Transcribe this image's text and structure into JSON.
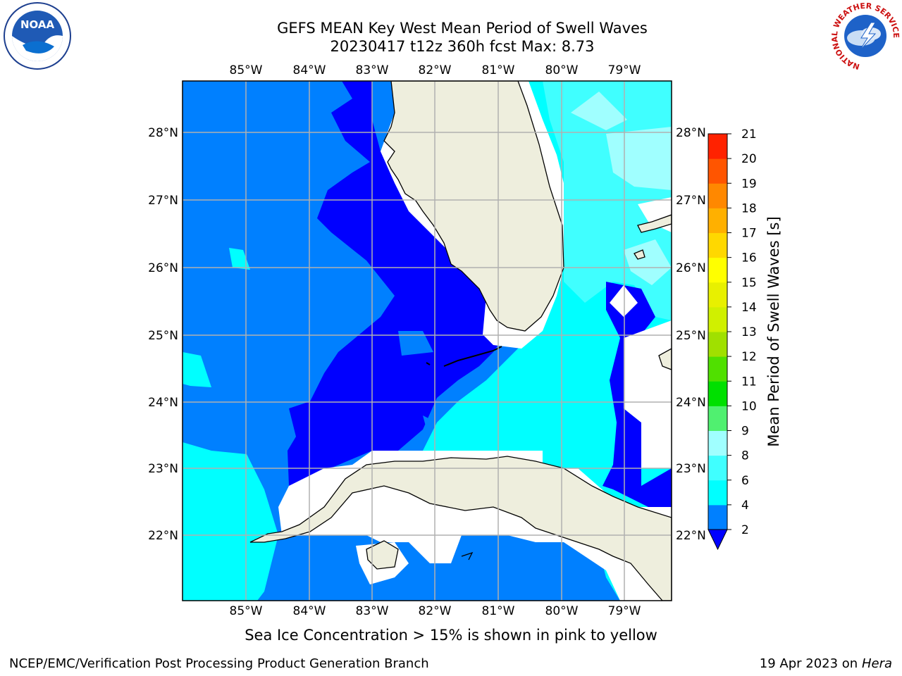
{
  "title": {
    "line1": "GEFS MEAN Key West Mean Period of Swell Waves",
    "line2": "20230417 t12z 360h fcst   Max: 8.73"
  },
  "map": {
    "lon_labels": [
      "85°W",
      "84°W",
      "83°W",
      "82°W",
      "81°W",
      "80°W",
      "79°W"
    ],
    "lat_labels_left": [
      "28°N",
      "27°N",
      "26°N",
      "25°N",
      "24°N",
      "23°N",
      "22°N"
    ],
    "lat_labels_right": [
      "28°N",
      "27°N",
      "26°N",
      "25°N",
      "24°N",
      "23°N",
      "22°N"
    ],
    "colors": {
      "band_2_4": "#0080ff",
      "band_below_2": "#0000ff",
      "band_4_6": "#00ffff",
      "band_6_8": "#40ffff",
      "band_8_9": "#a0ffff",
      "land": "#eeeedd",
      "grid": "#b0b0b0"
    }
  },
  "colorbar": {
    "label": "Mean Period of Swell Waves [s]",
    "ticks": [
      "2",
      "4",
      "6",
      "8",
      "9",
      "10",
      "11",
      "12",
      "13",
      "14",
      "15",
      "16",
      "17",
      "18",
      "19",
      "20",
      "21"
    ],
    "band_colors": [
      "#0080ff",
      "#00ffff",
      "#40ffff",
      "#a0ffff",
      "#50f070",
      "#00e000",
      "#50e000",
      "#a0e000",
      "#d0f000",
      "#e8f000",
      "#ffff00",
      "#ffd800",
      "#ffb000",
      "#ff8800",
      "#ff5500",
      "#ff2200"
    ],
    "extend_color": "#0000ff"
  },
  "caption": "Sea Ice Concentration > 15% is shown in pink to yellow",
  "footer": {
    "left": "NCEP/EMC/Verification Post Processing Product Generation Branch",
    "right_date": "19 Apr 2023 on ",
    "right_host": "Hera"
  },
  "logos": {
    "noaa_text": "NOAA",
    "nws_text": "NATIONAL WEATHER SERVICE"
  }
}
